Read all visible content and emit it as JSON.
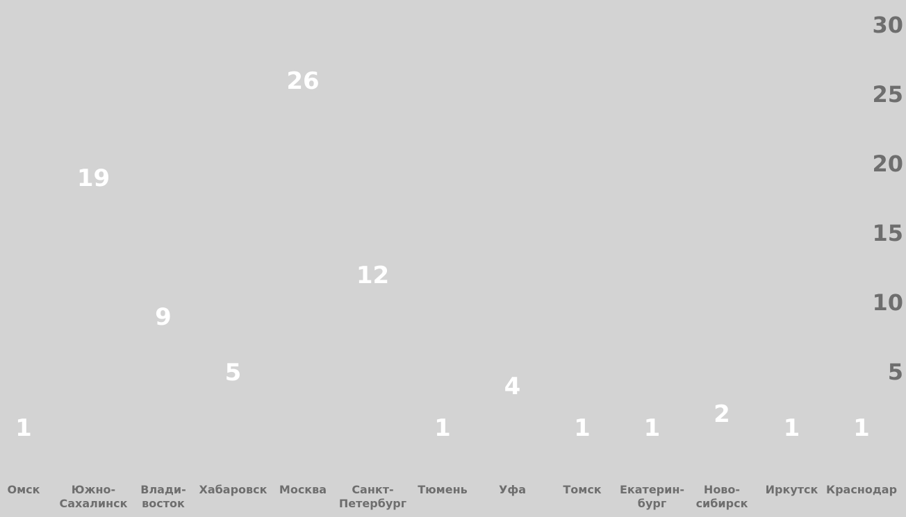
{
  "chart_data": {
    "type": "scatter",
    "categories": [
      [
        "Омск"
      ],
      [
        "Южно-",
        "Сахалинск"
      ],
      [
        "Влади-",
        "восток"
      ],
      [
        "Хабаровск"
      ],
      [
        "Москва"
      ],
      [
        "Санкт-",
        "Петербург"
      ],
      [
        "Тюмень"
      ],
      [
        "Уфа"
      ],
      [
        "Томск"
      ],
      [
        "Екатерин-",
        "бург"
      ],
      [
        "Ново-",
        "сибирск"
      ],
      [
        "Иркутск"
      ],
      [
        "Краснодар"
      ]
    ],
    "values": [
      1,
      19,
      9,
      5,
      26,
      12,
      1,
      4,
      1,
      1,
      2,
      1,
      1
    ],
    "ylim": [
      0,
      30
    ],
    "yticks": [
      5,
      10,
      15,
      20,
      25,
      30
    ],
    "grid": false,
    "colors": {
      "background": "#d3d3d3",
      "value_label": "#ffffff",
      "axis_text": "#6e6e6e"
    }
  }
}
